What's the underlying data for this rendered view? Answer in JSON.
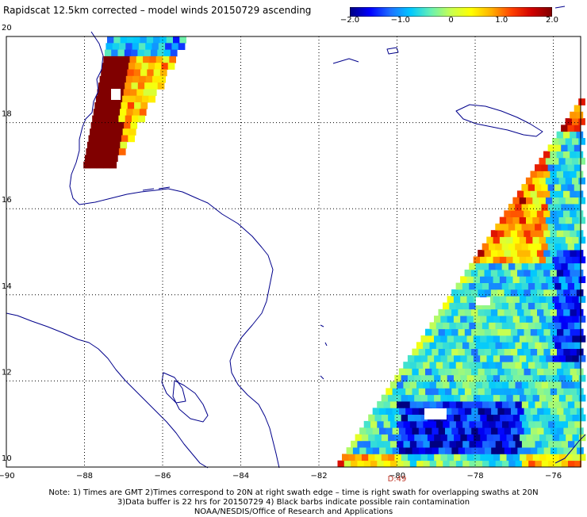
{
  "title": "Rapidscat 12.5km corrected – model winds 20150729 ascending",
  "colorbar": {
    "min": -2.0,
    "max": 2.0,
    "ticks": [
      {
        "label": "−2.0",
        "value": -2.0
      },
      {
        "label": "−1.0",
        "value": -1.0
      },
      {
        "label": "0",
        "value": 0
      },
      {
        "label": "1.0",
        "value": 1.0
      },
      {
        "label": "2.0",
        "value": 2.0
      }
    ],
    "colors": [
      "#000080",
      "#0000ff",
      "#1e6fff",
      "#00c8ff",
      "#66f0b4",
      "#c8ff50",
      "#ffff00",
      "#ffb000",
      "#ff4000",
      "#d00000",
      "#800000"
    ]
  },
  "map": {
    "lon_range": [
      -90,
      -75.3
    ],
    "lat_range": [
      10,
      20
    ],
    "lon_ticks": [
      {
        "label": "−90",
        "value": -90
      },
      {
        "label": "−88",
        "value": -88
      },
      {
        "label": "−86",
        "value": -86
      },
      {
        "label": "−84",
        "value": -84
      },
      {
        "label": "−82",
        "value": -82
      },
      {
        "label": "−80",
        "value": -80
      },
      {
        "label": "−78",
        "value": -78
      },
      {
        "label": "−76",
        "value": -76
      }
    ],
    "lat_ticks": [
      {
        "label": "10",
        "value": 10
      },
      {
        "label": "12",
        "value": 12
      },
      {
        "label": "14",
        "value": 14
      },
      {
        "label": "16",
        "value": 16
      },
      {
        "label": "18",
        "value": 18
      },
      {
        "label": "20",
        "value": 20
      }
    ],
    "time_label": {
      "text": "D:49",
      "lon": -80
    },
    "coastline_color": "#00008b",
    "grid": true
  },
  "footer": {
    "line1": "Note: 1) Times are GMT 2)Times correspond to 20N at right swath edge – time is right swath for overlapping swaths at 20N",
    "line2": "3)Data buffer is 22 hrs for 20150729 4) Black barbs indicate possible rain contamination",
    "line3": "NOAA/NESDIS/Office of Research and Applications"
  }
}
